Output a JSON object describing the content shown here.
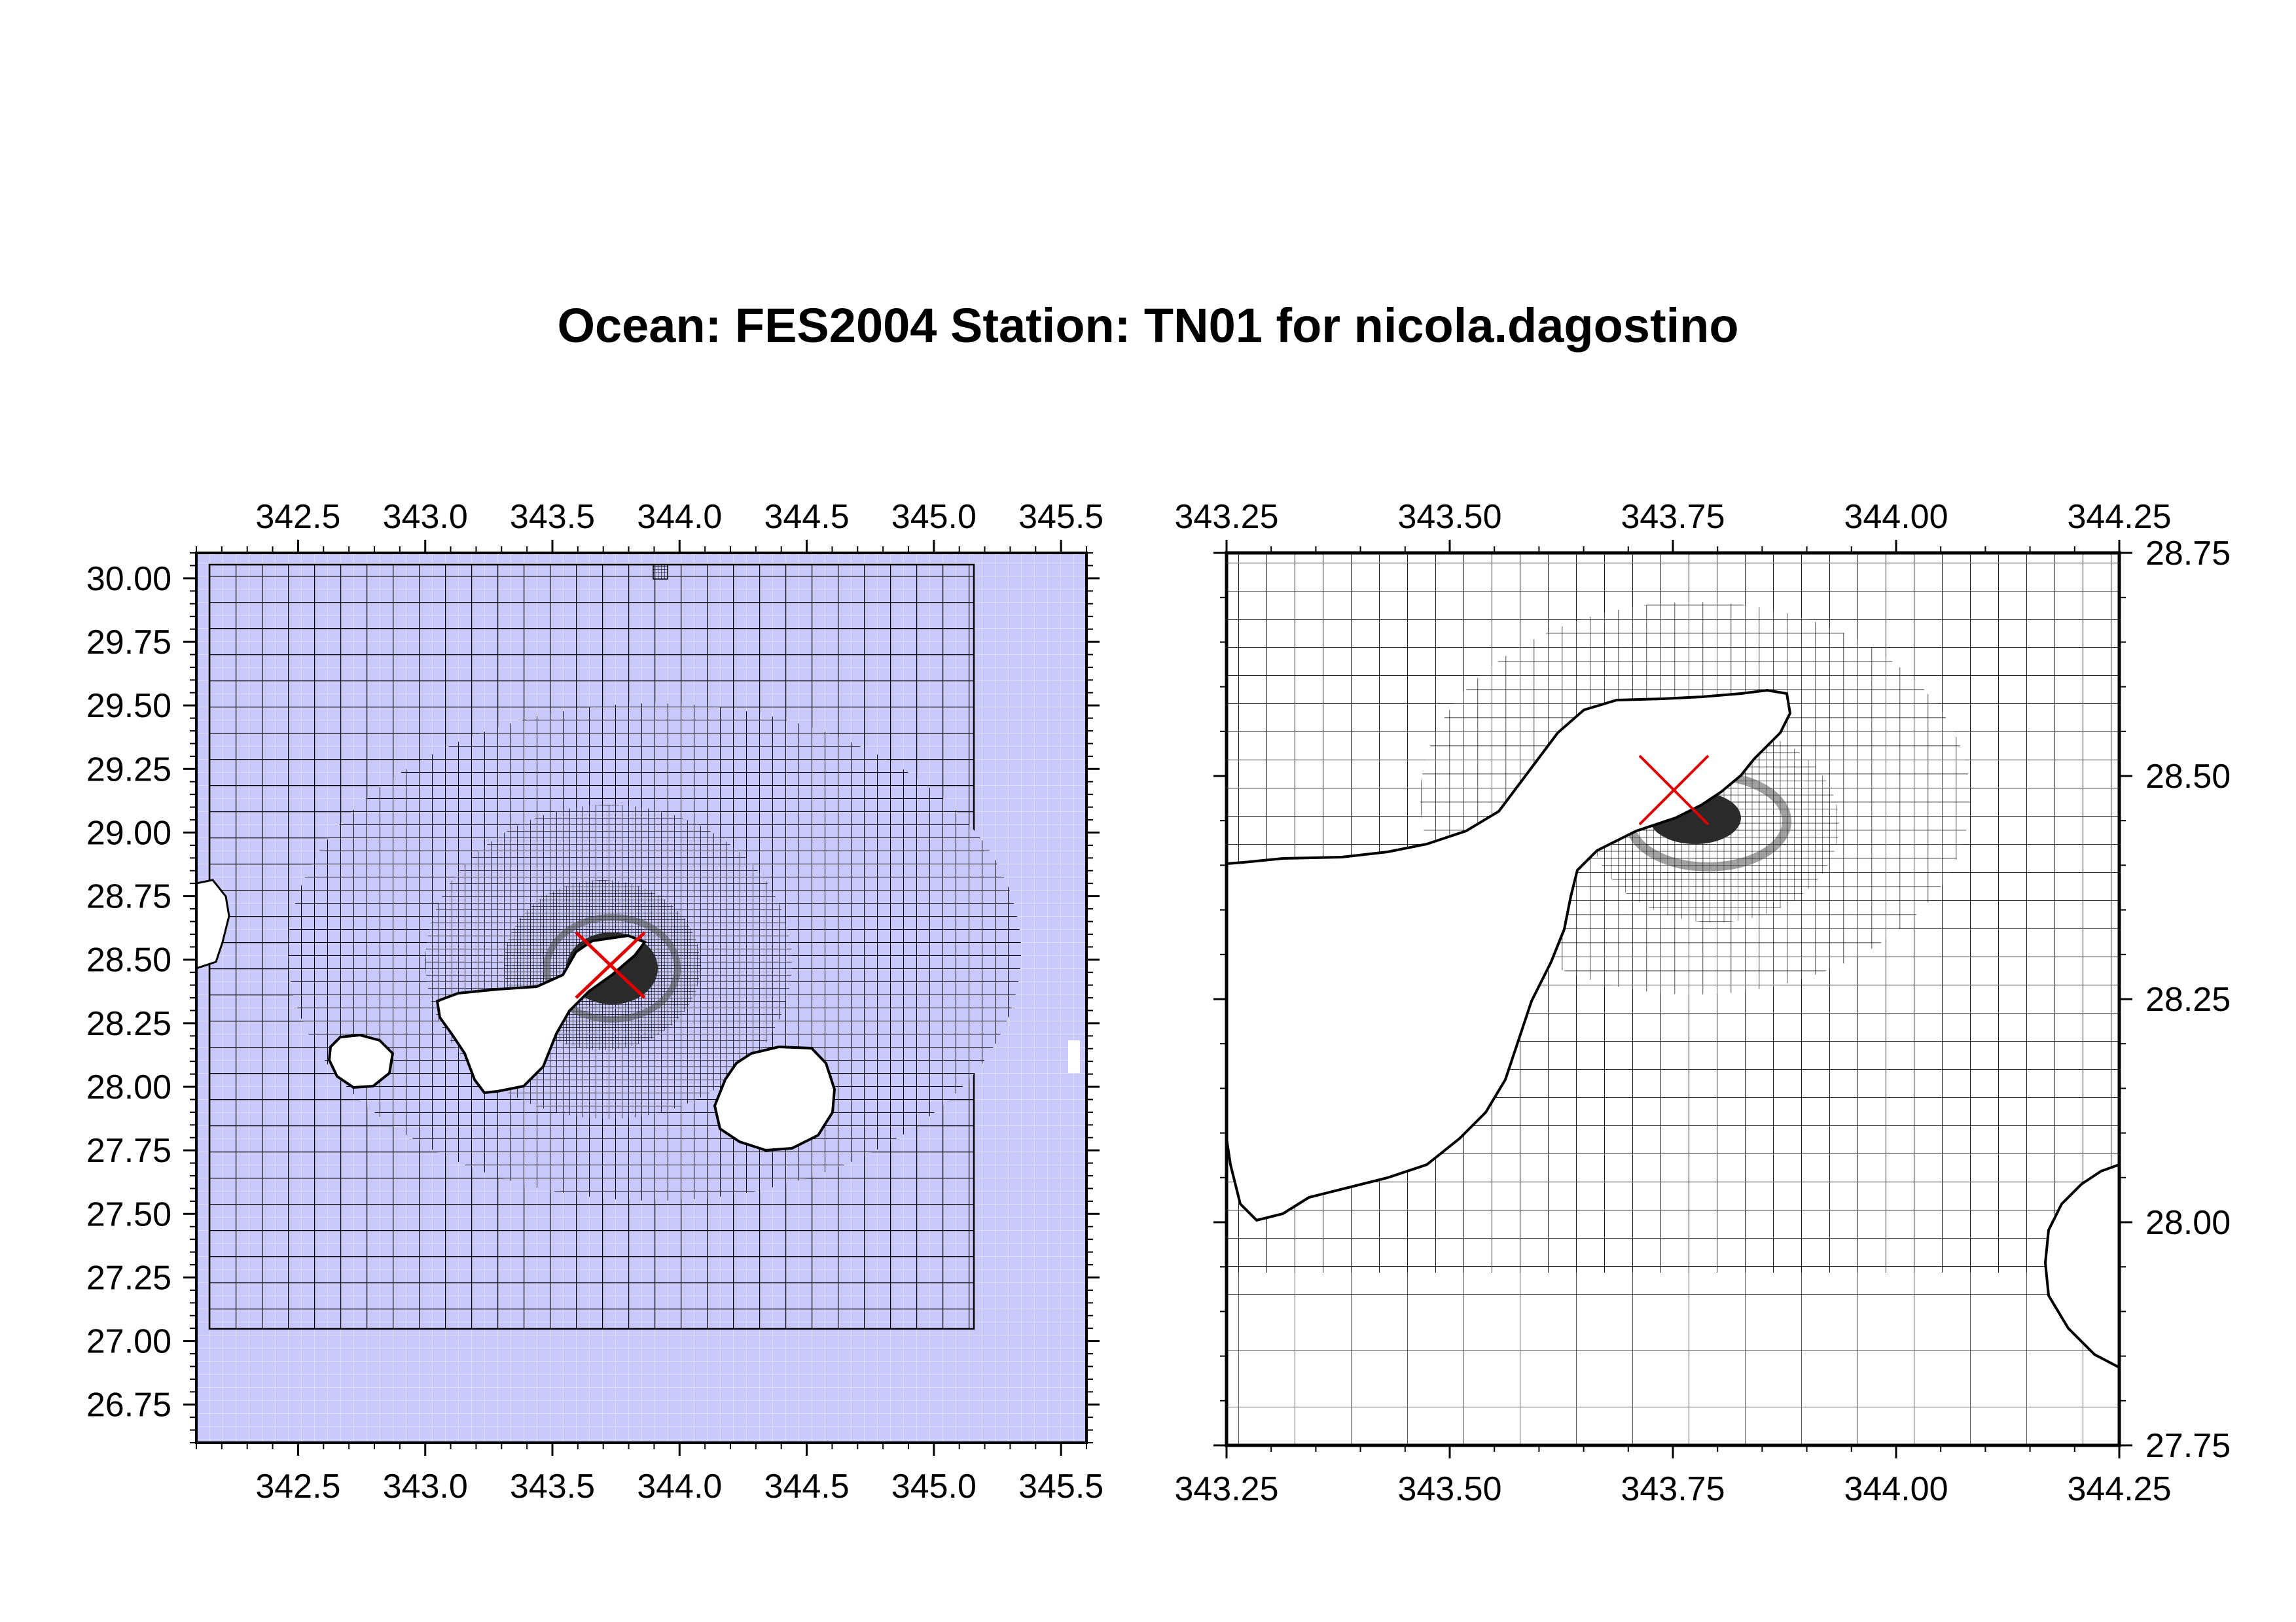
{
  "title": "Ocean: FES2004  Station: TN01  for nicola.dagostino",
  "colors": {
    "ocean_fill": "#c8c8fa",
    "grid_line": "#000000",
    "land": "#ffffff",
    "station_marker": "#e00000",
    "dense_core": "#333333"
  },
  "maps": [
    {
      "name": "overview",
      "x_ticks": [
        "342.5",
        "343.0",
        "343.5",
        "344.0",
        "344.5",
        "345.0",
        "345.5"
      ],
      "y_ticks": [
        "30.00",
        "29.75",
        "29.50",
        "29.25",
        "29.00",
        "28.75",
        "28.50",
        "28.25",
        "28.00",
        "27.75",
        "27.50",
        "27.25",
        "27.00",
        "26.75"
      ],
      "x_range": [
        342.1,
        345.6
      ],
      "y_range": [
        26.6,
        30.1
      ],
      "station_marker": "red-x",
      "station_lon": 343.76,
      "station_lat": 28.48
    },
    {
      "name": "zoom",
      "x_ticks": [
        "343.25",
        "343.50",
        "343.75",
        "344.00",
        "344.25"
      ],
      "y_ticks": [
        "28.75",
        "28.50",
        "28.25",
        "28.00",
        "27.75"
      ],
      "x_range": [
        343.25,
        344.25
      ],
      "y_range": [
        27.75,
        28.75
      ],
      "station_marker": "red-x",
      "station_lon": 343.76,
      "station_lat": 28.48
    }
  ]
}
